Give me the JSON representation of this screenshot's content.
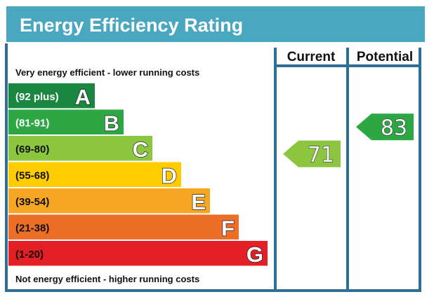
{
  "colors": {
    "frame": "#2d6f96",
    "header": "#4aa7c0",
    "band_A": "#1a8741",
    "band_B": "#2da744",
    "band_C": "#8cc63f",
    "band_D": "#ffcc00",
    "band_E": "#f5a623",
    "band_F": "#ec6e27",
    "band_G": "#e31e24",
    "current_arrow": "#8cc63f",
    "potential_arrow": "#2da744"
  },
  "chart_data": {
    "type": "bar",
    "title": "Energy Efficiency Rating",
    "columns": [
      "Current",
      "Potential"
    ],
    "top_note": "Very energy efficient - lower running costs",
    "bottom_note": "Not energy efficient - higher running costs",
    "bands": [
      {
        "letter": "A",
        "range": "(92 plus)",
        "min": 92,
        "max": 100,
        "color": "#1a8741",
        "dark_text": false
      },
      {
        "letter": "B",
        "range": "(81-91)",
        "min": 81,
        "max": 91,
        "color": "#2da744",
        "dark_text": false
      },
      {
        "letter": "C",
        "range": "(69-80)",
        "min": 69,
        "max": 80,
        "color": "#8cc63f",
        "dark_text": true
      },
      {
        "letter": "D",
        "range": "(55-68)",
        "min": 55,
        "max": 68,
        "color": "#ffcc00",
        "dark_text": true
      },
      {
        "letter": "E",
        "range": "(39-54)",
        "min": 39,
        "max": 54,
        "color": "#f5a623",
        "dark_text": true
      },
      {
        "letter": "F",
        "range": "(21-38)",
        "min": 21,
        "max": 38,
        "color": "#ec6e27",
        "dark_text": true
      },
      {
        "letter": "G",
        "range": "(1-20)",
        "min": 1,
        "max": 20,
        "color": "#e31e24",
        "dark_text": true
      }
    ],
    "current": {
      "value": 71,
      "band": "C"
    },
    "potential": {
      "value": 83,
      "band": "B"
    }
  }
}
